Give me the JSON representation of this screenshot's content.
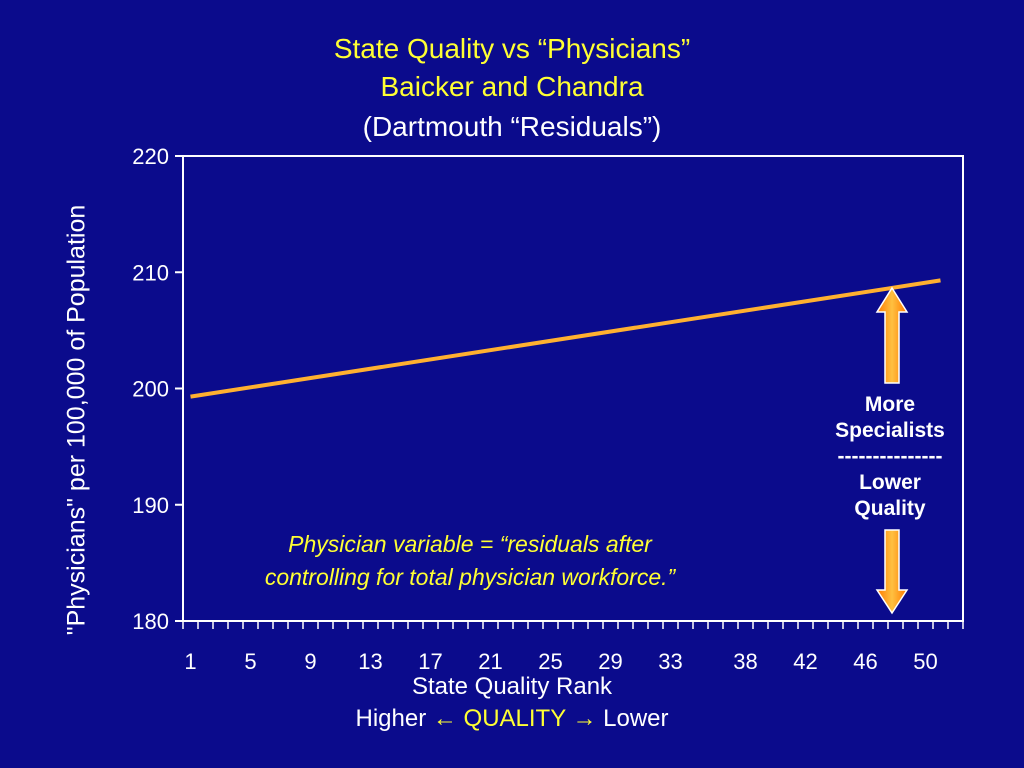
{
  "slide": {
    "title_line1": "State Quality vs “Physicians”",
    "title_line2": "Baicker and Chandra",
    "title_line3": "(Dartmouth “Residuals”)",
    "note_line1": "Physician variable = “residuals after",
    "note_line2": "controlling for total physician workforce.”",
    "spec_line1": "More",
    "spec_line2": "Specialists",
    "spec_line3": "---------------",
    "spec_line4": "Lower",
    "spec_line5": "Quality",
    "xsub_left": "Higher",
    "xsub_quality": "QUALITY",
    "xsub_right": "Lower",
    "arrow_left": "←",
    "arrow_right": "→"
  },
  "chart_data": {
    "type": "line",
    "title": "State Quality vs “Physicians”",
    "xlabel": "State Quality Rank",
    "ylabel": "\"Physicians\" per 100,000 of Population",
    "ylim": [
      180,
      220
    ],
    "yticks": [
      180,
      190,
      200,
      210,
      220
    ],
    "xlim": [
      1,
      51
    ],
    "xticks": [
      1,
      5,
      9,
      13,
      17,
      21,
      25,
      29,
      33,
      38,
      42,
      46,
      50
    ],
    "series": [
      {
        "x": [
          1,
          51
        ],
        "y": [
          199.3,
          209.3
        ],
        "color": "#ffb030"
      }
    ],
    "grid": false,
    "legend": "none"
  }
}
